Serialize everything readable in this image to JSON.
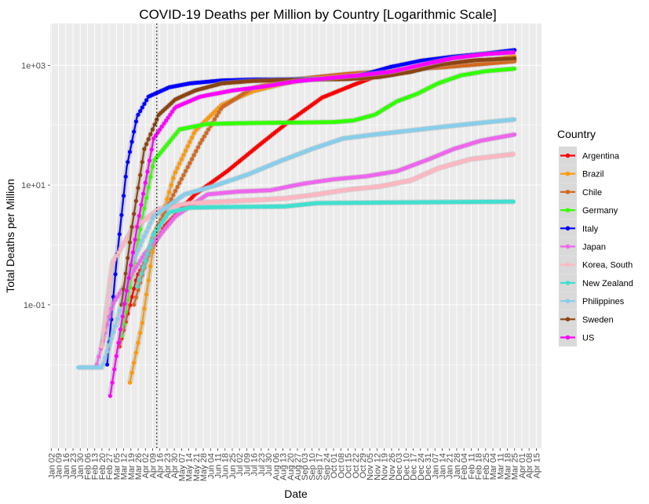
{
  "chart_data": {
    "type": "scatter",
    "title": "COVID-19 Deaths per Million by Country [Logarithmic Scale]",
    "xlabel": "Date",
    "ylabel": "Total Deaths per Million",
    "y_scale": "log10",
    "ylim": [
      0.0004,
      5000
    ],
    "y_ticks": [
      0.1,
      10,
      1000
    ],
    "y_tick_labels": [
      "1e-01",
      "1e+01",
      "1e+03"
    ],
    "x_range": [
      "2020-01-01",
      "2021-04-20"
    ],
    "x_ticks": [
      "2020-01-02",
      "2020-01-09",
      "2020-01-16",
      "2020-01-23",
      "2020-01-30",
      "2020-02-06",
      "2020-02-13",
      "2020-02-20",
      "2020-02-27",
      "2020-03-05",
      "2020-03-12",
      "2020-03-19",
      "2020-03-26",
      "2020-04-02",
      "2020-04-09",
      "2020-04-16",
      "2020-04-23",
      "2020-04-30",
      "2020-05-07",
      "2020-05-14",
      "2020-05-21",
      "2020-05-28",
      "2020-06-04",
      "2020-06-11",
      "2020-06-18",
      "2020-06-25",
      "2020-07-02",
      "2020-07-09",
      "2020-07-16",
      "2020-07-23",
      "2020-07-30",
      "2020-08-06",
      "2020-08-13",
      "2020-08-20",
      "2020-08-27",
      "2020-09-03",
      "2020-09-10",
      "2020-09-17",
      "2020-09-24",
      "2020-10-01",
      "2020-10-08",
      "2020-10-15",
      "2020-10-22",
      "2020-10-29",
      "2020-11-05",
      "2020-11-12",
      "2020-11-19",
      "2020-11-26",
      "2020-12-03",
      "2020-12-10",
      "2020-12-17",
      "2020-12-24",
      "2020-12-31",
      "2021-01-07",
      "2021-01-14",
      "2021-01-21",
      "2021-01-28",
      "2021-02-04",
      "2021-02-11",
      "2021-02-18",
      "2021-02-25",
      "2021-03-04",
      "2021-03-11",
      "2021-03-18",
      "2021-03-25",
      "2021-04-01",
      "2021-04-08",
      "2021-04-15"
    ],
    "x_tick_labels": [
      "Jan 02",
      "Jan 09",
      "Jan 16",
      "Jan 23",
      "Jan 30",
      "Feb 06",
      "Feb 13",
      "Feb 20",
      "Feb 27",
      "Mar 05",
      "Mar 12",
      "Mar 19",
      "Mar 26",
      "Apr 02",
      "Apr 09",
      "Apr 16",
      "Apr 23",
      "Apr 30",
      "May 07",
      "May 14",
      "May 21",
      "May 28",
      "Jun 04",
      "Jun 11",
      "Jun 18",
      "Jun 25",
      "Jul 02",
      "Jul 09",
      "Jul 16",
      "Jul 23",
      "Jul 30",
      "Aug 06",
      "Aug 13",
      "Aug 20",
      "Aug 27",
      "Sep 03",
      "Sep 10",
      "Sep 17",
      "Sep 24",
      "Oct 01",
      "Oct 08",
      "Oct 15",
      "Oct 22",
      "Oct 29",
      "Nov 05",
      "Nov 12",
      "Nov 19",
      "Nov 26",
      "Dec 03",
      "Dec 10",
      "Dec 17",
      "Dec 24",
      "Dec 31",
      "Jan 07",
      "Jan 14",
      "Jan 21",
      "Jan 28",
      "Feb 04",
      "Feb 11",
      "Feb 18",
      "Feb 25",
      "Mar 04",
      "Mar 11",
      "Mar 18",
      "Mar 25",
      "Apr 01",
      "Apr 08",
      "Apr 15"
    ],
    "reference_line": {
      "date": "2020-04-13",
      "style": "dotted"
    },
    "legend_title": "Country",
    "legend_position": "right",
    "grid": true,
    "series": [
      {
        "name": "Argentina",
        "color": "#ff0000",
        "points": [
          [
            "2020-03-08",
            0.02
          ],
          [
            "2020-03-25",
            0.3
          ],
          [
            "2020-04-20",
            2
          ],
          [
            "2020-05-20",
            7
          ],
          [
            "2020-06-20",
            17
          ],
          [
            "2020-07-20",
            45
          ],
          [
            "2020-08-20",
            120
          ],
          [
            "2020-09-20",
            290
          ],
          [
            "2020-10-20",
            470
          ],
          [
            "2020-11-20",
            750
          ],
          [
            "2020-12-20",
            870
          ],
          [
            "2021-01-20",
            1000
          ],
          [
            "2021-02-20",
            1100
          ],
          [
            "2021-03-25",
            1250
          ]
        ]
      },
      {
        "name": "Brazil",
        "color": "#ff9900",
        "points": [
          [
            "2020-03-18",
            0.005
          ],
          [
            "2020-03-30",
            0.05
          ],
          [
            "2020-04-10",
            1
          ],
          [
            "2020-04-30",
            15
          ],
          [
            "2020-05-20",
            80
          ],
          [
            "2020-06-15",
            220
          ],
          [
            "2020-07-15",
            370
          ],
          [
            "2020-08-15",
            500
          ],
          [
            "2020-09-15",
            620
          ],
          [
            "2020-10-15",
            710
          ],
          [
            "2020-11-15",
            770
          ],
          [
            "2020-12-15",
            850
          ],
          [
            "2021-01-15",
            980
          ],
          [
            "2021-02-15",
            1120
          ],
          [
            "2021-03-25",
            1420
          ]
        ]
      },
      {
        "name": "Chile",
        "color": "#d2691e",
        "points": [
          [
            "2020-03-22",
            0.1
          ],
          [
            "2020-04-10",
            1.5
          ],
          [
            "2020-05-01",
            8
          ],
          [
            "2020-05-25",
            50
          ],
          [
            "2020-06-15",
            200
          ],
          [
            "2020-07-15",
            420
          ],
          [
            "2020-08-15",
            560
          ],
          [
            "2020-09-15",
            640
          ],
          [
            "2020-10-15",
            720
          ],
          [
            "2020-11-15",
            790
          ],
          [
            "2020-12-15",
            860
          ],
          [
            "2021-01-15",
            930
          ],
          [
            "2021-02-15",
            1030
          ],
          [
            "2021-03-25",
            1170
          ]
        ]
      },
      {
        "name": "Germany",
        "color": "#33ff00",
        "points": [
          [
            "2020-03-10",
            0.03
          ],
          [
            "2020-03-25",
            1
          ],
          [
            "2020-04-10",
            25
          ],
          [
            "2020-05-05",
            85
          ],
          [
            "2020-06-01",
            105
          ],
          [
            "2020-07-01",
            108
          ],
          [
            "2020-08-01",
            110
          ],
          [
            "2020-09-01",
            111
          ],
          [
            "2020-10-01",
            113
          ],
          [
            "2020-10-20",
            120
          ],
          [
            "2020-11-10",
            150
          ],
          [
            "2020-12-01",
            250
          ],
          [
            "2020-12-20",
            330
          ],
          [
            "2021-01-10",
            500
          ],
          [
            "2021-02-01",
            680
          ],
          [
            "2021-02-25",
            800
          ],
          [
            "2021-03-25",
            880
          ]
        ]
      },
      {
        "name": "Italy",
        "color": "#0000ff",
        "points": [
          [
            "2020-02-25",
            0.01
          ],
          [
            "2020-03-05",
            0.5
          ],
          [
            "2020-03-15",
            20
          ],
          [
            "2020-03-25",
            140
          ],
          [
            "2020-04-05",
            300
          ],
          [
            "2020-04-25",
            430
          ],
          [
            "2020-05-15",
            500
          ],
          [
            "2020-06-15",
            560
          ],
          [
            "2020-07-15",
            580
          ],
          [
            "2020-08-15",
            585
          ],
          [
            "2020-09-15",
            590
          ],
          [
            "2020-10-15",
            620
          ],
          [
            "2020-11-05",
            750
          ],
          [
            "2020-11-25",
            940
          ],
          [
            "2020-12-25",
            1200
          ],
          [
            "2021-01-25",
            1400
          ],
          [
            "2021-02-25",
            1580
          ],
          [
            "2021-03-25",
            1800
          ]
        ]
      },
      {
        "name": "Japan",
        "color": "#ee66ee",
        "points": [
          [
            "2020-02-15",
            0.01
          ],
          [
            "2020-03-01",
            0.1
          ],
          [
            "2020-04-01",
            0.7
          ],
          [
            "2020-05-01",
            3
          ],
          [
            "2020-06-01",
            7
          ],
          [
            "2020-07-01",
            7.8
          ],
          [
            "2020-08-01",
            8.2
          ],
          [
            "2020-09-01",
            10.5
          ],
          [
            "2020-10-01",
            12.5
          ],
          [
            "2020-11-01",
            14
          ],
          [
            "2020-12-01",
            17
          ],
          [
            "2021-01-01",
            27
          ],
          [
            "2021-01-25",
            40
          ],
          [
            "2021-02-20",
            55
          ],
          [
            "2021-03-25",
            70
          ]
        ]
      },
      {
        "name": "Korea, South",
        "color": "#ffb6c1",
        "points": [
          [
            "2020-02-20",
            0.02
          ],
          [
            "2020-03-01",
            0.5
          ],
          [
            "2020-03-20",
            1.8
          ],
          [
            "2020-04-15",
            4
          ],
          [
            "2020-05-15",
            5
          ],
          [
            "2020-06-15",
            5.3
          ],
          [
            "2020-07-15",
            5.6
          ],
          [
            "2020-08-15",
            6
          ],
          [
            "2020-09-15",
            7
          ],
          [
            "2020-10-15",
            8.4
          ],
          [
            "2020-11-15",
            9.5
          ],
          [
            "2020-12-15",
            12
          ],
          [
            "2021-01-10",
            19
          ],
          [
            "2021-02-10",
            27
          ],
          [
            "2021-03-25",
            33
          ]
        ]
      },
      {
        "name": "New Zealand",
        "color": "#40e0d0",
        "points": [
          [
            "2020-03-25",
            0.2
          ],
          [
            "2020-04-10",
            1.5
          ],
          [
            "2020-04-25",
            3.5
          ],
          [
            "2020-05-15",
            4.2
          ],
          [
            "2020-06-15",
            4.3
          ],
          [
            "2020-08-15",
            4.4
          ],
          [
            "2020-09-15",
            5
          ],
          [
            "2020-11-15",
            5.1
          ],
          [
            "2021-01-15",
            5.2
          ],
          [
            "2021-03-25",
            5.3
          ]
        ]
      },
      {
        "name": "Philippines",
        "color": "#87ceeb",
        "points": [
          [
            "2020-01-28",
            0.009
          ],
          [
            "2020-02-20",
            0.009
          ],
          [
            "2020-03-05",
            0.05
          ],
          [
            "2020-03-20",
            0.5
          ],
          [
            "2020-04-10",
            3
          ],
          [
            "2020-05-10",
            7
          ],
          [
            "2020-06-10",
            10
          ],
          [
            "2020-07-10",
            15
          ],
          [
            "2020-08-10",
            25
          ],
          [
            "2020-09-10",
            40
          ],
          [
            "2020-10-10",
            60
          ],
          [
            "2020-11-10",
            70
          ],
          [
            "2020-12-10",
            80
          ],
          [
            "2021-01-10",
            92
          ],
          [
            "2021-02-10",
            105
          ],
          [
            "2021-03-25",
            125
          ]
        ]
      },
      {
        "name": "Sweden",
        "color": "#8b4513",
        "points": [
          [
            "2020-03-10",
            0.1
          ],
          [
            "2020-03-20",
            2
          ],
          [
            "2020-04-01",
            40
          ],
          [
            "2020-04-15",
            150
          ],
          [
            "2020-05-01",
            270
          ],
          [
            "2020-05-20",
            380
          ],
          [
            "2020-06-15",
            500
          ],
          [
            "2020-07-15",
            550
          ],
          [
            "2020-08-15",
            570
          ],
          [
            "2020-09-15",
            580
          ],
          [
            "2020-10-15",
            590
          ],
          [
            "2020-11-15",
            640
          ],
          [
            "2020-12-15",
            780
          ],
          [
            "2021-01-15",
            1050
          ],
          [
            "2021-02-15",
            1220
          ],
          [
            "2021-03-25",
            1310
          ]
        ]
      },
      {
        "name": "US",
        "color": "#ff00ff",
        "points": [
          [
            "2020-02-28",
            0.003
          ],
          [
            "2020-03-10",
            0.05
          ],
          [
            "2020-03-25",
            2
          ],
          [
            "2020-04-10",
            60
          ],
          [
            "2020-05-01",
            200
          ],
          [
            "2020-05-25",
            300
          ],
          [
            "2020-06-25",
            380
          ],
          [
            "2020-07-25",
            440
          ],
          [
            "2020-08-25",
            540
          ],
          [
            "2020-09-25",
            610
          ],
          [
            "2020-10-25",
            680
          ],
          [
            "2020-11-25",
            780
          ],
          [
            "2020-12-25",
            1020
          ],
          [
            "2021-01-25",
            1320
          ],
          [
            "2021-02-25",
            1540
          ],
          [
            "2021-03-25",
            1650
          ]
        ]
      }
    ]
  }
}
